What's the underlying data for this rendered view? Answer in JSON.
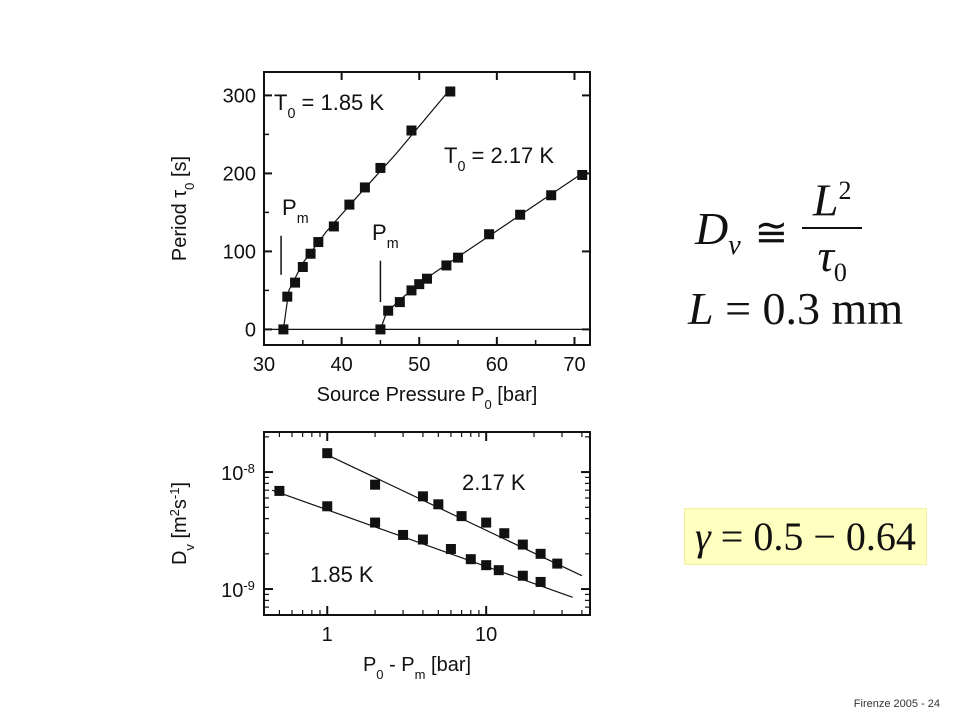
{
  "chart_data": [
    {
      "type": "scatter",
      "title": "",
      "xlabel_main": "Source Pressure P",
      "xlabel_sub": "0",
      "xlabel_tail": " [bar]",
      "ylabel_main": "Period τ",
      "ylabel_sub": "0",
      "ylabel_tail": " [s]",
      "xlim": [
        30,
        72
      ],
      "ylim": [
        -20,
        330
      ],
      "xticks": [
        30,
        40,
        50,
        60,
        70
      ],
      "yticks": [
        0,
        100,
        200,
        300
      ],
      "grid": false,
      "series": [
        {
          "label_main": "T",
          "label_sub": "0",
          "label_tail": " = 1.85 K",
          "onset_label_main": "P",
          "onset_label_sub": "m",
          "x": [
            32.5,
            33.0,
            34.0,
            35.0,
            36.0,
            37.0,
            39.0,
            41.0,
            43.0,
            45.0,
            49.0,
            54.0
          ],
          "y": [
            0,
            42,
            60,
            80,
            97,
            112,
            132,
            160,
            182,
            207,
            255,
            305
          ],
          "fit": [
            [
              32.5,
              0
            ],
            [
              33.2,
              50
            ],
            [
              35.0,
              85
            ],
            [
              38.0,
              125
            ],
            [
              42.0,
              170
            ],
            [
              47.0,
              225
            ],
            [
              54.0,
              308
            ]
          ]
        },
        {
          "label_main": "T",
          "label_sub": "0",
          "label_tail": " = 2.17 K",
          "onset_label_main": "P",
          "onset_label_sub": "m",
          "x": [
            45.0,
            46.0,
            47.5,
            49.0,
            50.0,
            51.0,
            53.5,
            55.0,
            59.0,
            63.0,
            67.0,
            71.0
          ],
          "y": [
            0,
            24,
            35,
            50,
            58,
            65,
            82,
            92,
            122,
            147,
            172,
            198
          ],
          "fit": [
            [
              45.0,
              0
            ],
            [
              45.8,
              22
            ],
            [
              48.0,
              42
            ],
            [
              52.0,
              73
            ],
            [
              58.0,
              113
            ],
            [
              65.0,
              160
            ],
            [
              71.0,
              200
            ]
          ]
        }
      ]
    },
    {
      "type": "scatter",
      "title": "",
      "log_x": true,
      "log_y": true,
      "xlabel_main": "P",
      "xlabel_sub1": "0",
      "xlabel_mid": " - P",
      "xlabel_sub2": "m",
      "xlabel_tail": " [bar]",
      "ylabel_main": "D",
      "ylabel_sub": "v",
      "ylabel_tail": " [m",
      "ylabel_sup1": "2",
      "ylabel_s": "s",
      "ylabel_sup2": "-1",
      "ylabel_end": "]",
      "xlim": [
        0.4,
        45
      ],
      "ylim": [
        6e-10,
        2.2e-08
      ],
      "xticks": [
        {
          "value": 1,
          "label": "1"
        },
        {
          "value": 10,
          "label": "10"
        }
      ],
      "yticks": [
        {
          "value": 1e-08,
          "base": "10",
          "exp": "-8"
        },
        {
          "value": 1e-09,
          "base": "10",
          "exp": "-9"
        }
      ],
      "grid": false,
      "series": [
        {
          "label": "2.17 K",
          "x": [
            1.0,
            2.0,
            4.0,
            5.0,
            7.0,
            10.0,
            13.0,
            17.0,
            22.0,
            28.0
          ],
          "y": [
            1.45e-08,
            7.8e-09,
            6.2e-09,
            5.3e-09,
            4.2e-09,
            3.7e-09,
            3e-09,
            2.4e-09,
            2e-09,
            1.65e-09
          ],
          "fit": [
            [
              0.95,
              1.45e-08
            ],
            [
              40,
              1.3e-09
            ]
          ]
        },
        {
          "label": "1.85 K",
          "x": [
            0.5,
            1.0,
            2.0,
            3.0,
            4.0,
            6.0,
            8.0,
            10.0,
            12.0,
            17.0,
            22.0
          ],
          "y": [
            6.9e-09,
            5.1e-09,
            3.7e-09,
            2.9e-09,
            2.65e-09,
            2.2e-09,
            1.8e-09,
            1.6e-09,
            1.45e-09,
            1.3e-09,
            1.15e-09
          ],
          "fit": [
            [
              0.45,
              7e-09
            ],
            [
              35,
              8.5e-10
            ]
          ]
        }
      ]
    }
  ],
  "equations": {
    "diffusion": {
      "lhs": "D",
      "lhs_sub": "v",
      "op": "≅",
      "num": "L",
      "num_sup": "2",
      "den": "τ",
      "den_sub": "0"
    },
    "length": {
      "var": "L",
      "rest": " = 0.3 mm"
    },
    "gamma": {
      "var": "γ",
      "rest": " = 0.5 − 0.64",
      "background": "#ffffc0"
    }
  },
  "footer": {
    "text": "Firenze  2005 - 24"
  }
}
